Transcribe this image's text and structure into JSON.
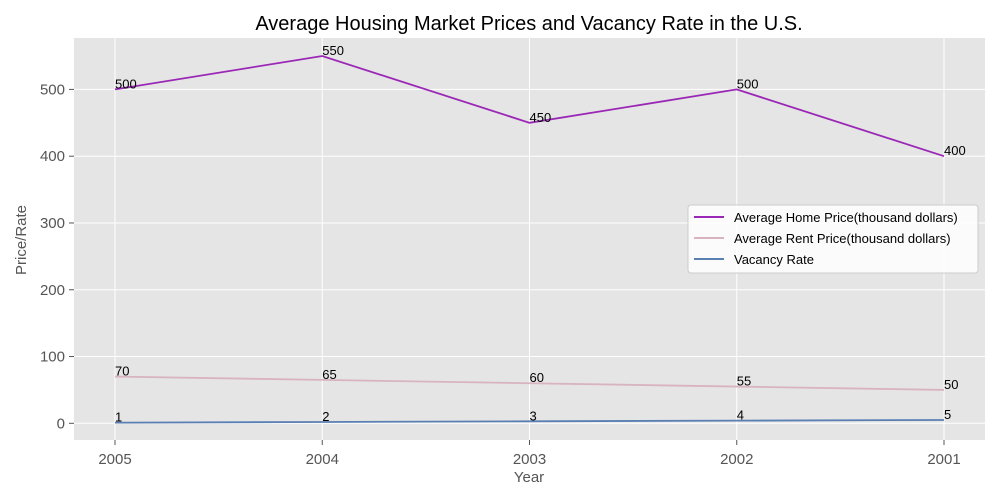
{
  "chart_data": {
    "type": "line",
    "title": "Average Housing Market Prices and Vacancy Rate in the U.S.",
    "xlabel": "Year",
    "ylabel": "Price/Rate",
    "categories": [
      "2005",
      "2004",
      "2003",
      "2002",
      "2001"
    ],
    "ylim": [
      -25,
      577
    ],
    "yticks": [
      0,
      100,
      200,
      300,
      400,
      500
    ],
    "grid": true,
    "legend_position": "center-right",
    "series": [
      {
        "name": "Average Home Price(thousand dollars)",
        "values": [
          500,
          550,
          450,
          500,
          400
        ],
        "color": "#9b27b6"
      },
      {
        "name": "Average Rent Price(thousand dollars)",
        "values": [
          70,
          65,
          60,
          55,
          50
        ],
        "color": "#d9b3bf"
      },
      {
        "name": "Vacancy Rate",
        "values": [
          1,
          2,
          3,
          4,
          5
        ],
        "color": "#5a7fb3"
      }
    ]
  }
}
